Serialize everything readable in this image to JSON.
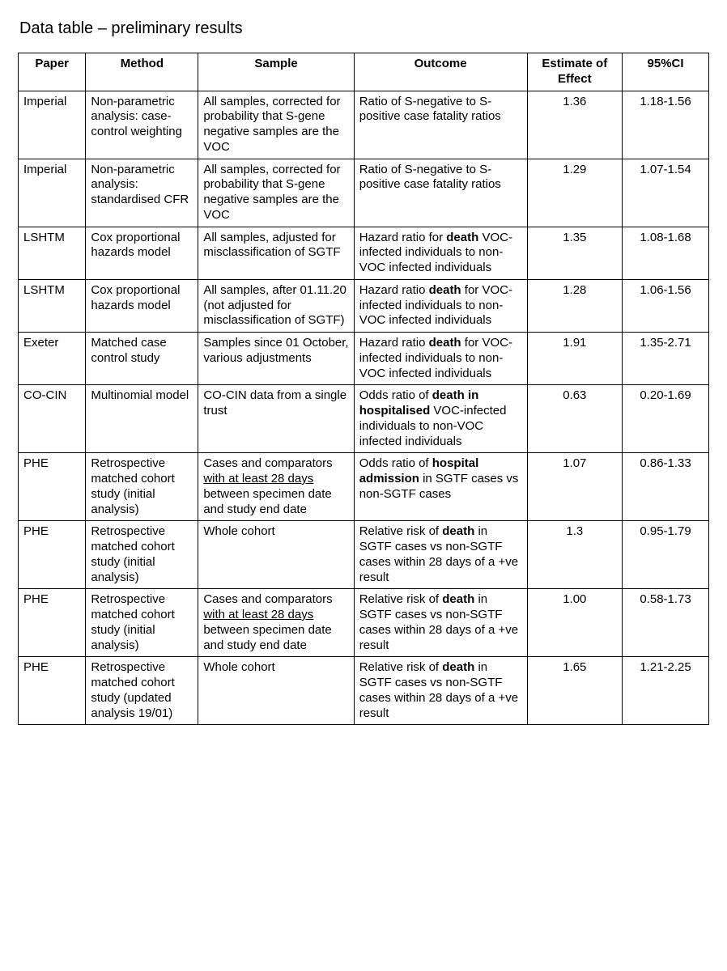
{
  "title": "Data table – preliminary results",
  "table": {
    "columns": [
      {
        "label": "Paper",
        "class": "c-paper"
      },
      {
        "label": "Method",
        "class": "c-method"
      },
      {
        "label": "Sample",
        "class": "c-sample"
      },
      {
        "label": "Outcome",
        "class": "c-outcome"
      },
      {
        "label": "Estimate of Effect",
        "class": "c-est"
      },
      {
        "label": "95%CI",
        "class": "c-ci"
      }
    ],
    "rows": [
      {
        "paper": "Imperial",
        "method": "Non-parametric analysis: case-control weighting",
        "sample": [
          {
            "t": "All samples, corrected for probability that S-gene negative samples are the VOC"
          }
        ],
        "outcome": [
          {
            "t": "Ratio of S-negative to S-positive case fatality ratios"
          }
        ],
        "estimate": "1.36",
        "ci": "1.18-1.56"
      },
      {
        "paper": "Imperial",
        "method": "Non-parametric analysis: standardised CFR",
        "sample": [
          {
            "t": "All samples, corrected for probability that S-gene negative samples are the VOC"
          }
        ],
        "outcome": [
          {
            "t": "Ratio of S-negative to S-positive case fatality ratios"
          }
        ],
        "estimate": "1.29",
        "ci": "1.07-1.54"
      },
      {
        "paper": "LSHTM",
        "method": "Cox proportional hazards model",
        "sample": [
          {
            "t": "All samples, adjusted for misclassification of SGTF"
          }
        ],
        "outcome": [
          {
            "t": "Hazard ratio for "
          },
          {
            "t": "death",
            "b": true
          },
          {
            "t": " VOC-infected individuals to non-VOC infected individuals"
          }
        ],
        "estimate": "1.35",
        "ci": "1.08-1.68"
      },
      {
        "paper": "LSHTM",
        "method": "Cox proportional hazards model",
        "sample": [
          {
            "t": "All samples, after 01.11.20 (not adjusted for misclassification of SGTF)"
          }
        ],
        "outcome": [
          {
            "t": "Hazard ratio "
          },
          {
            "t": "death",
            "b": true
          },
          {
            "t": " for VOC-infected individuals to non-VOC infected individuals"
          }
        ],
        "estimate": "1.28",
        "ci": "1.06-1.56"
      },
      {
        "paper": "Exeter",
        "method": "Matched case control study",
        "sample": [
          {
            "t": "Samples since 01 October, various adjustments"
          }
        ],
        "outcome": [
          {
            "t": "Hazard ratio "
          },
          {
            "t": "death",
            "b": true
          },
          {
            "t": " for VOC-infected individuals to non-VOC infected individuals"
          }
        ],
        "estimate": "1.91",
        "ci": "1.35-2.71"
      },
      {
        "paper": "CO-CIN",
        "method": "Multinomial model",
        "sample": [
          {
            "t": "CO-CIN data from a single trust"
          }
        ],
        "outcome": [
          {
            "t": "Odds ratio of "
          },
          {
            "t": "death in hospitalised",
            "b": true
          },
          {
            "t": " VOC-infected individuals to non-VOC infected individuals"
          }
        ],
        "estimate": "0.63",
        "ci": "0.20-1.69"
      },
      {
        "paper": "PHE",
        "method": "Retrospective matched cohort study (initial analysis)",
        "sample": [
          {
            "t": "Cases and comparators "
          },
          {
            "t": "with at least 28 days",
            "u": true
          },
          {
            "t": " between specimen date and study end date"
          }
        ],
        "outcome": [
          {
            "t": "Odds ratio of "
          },
          {
            "t": "hospital admission",
            "b": true
          },
          {
            "t": " in SGTF cases vs non-SGTF cases"
          }
        ],
        "estimate": "1.07",
        "ci": "0.86-1.33"
      },
      {
        "paper": "PHE",
        "method": "Retrospective matched cohort study (initial analysis)",
        "sample": [
          {
            "t": "Whole cohort"
          }
        ],
        "outcome": [
          {
            "t": "Relative risk of "
          },
          {
            "t": "death",
            "b": true
          },
          {
            "t": " in SGTF cases vs non-SGTF cases within 28 days of a +ve result"
          }
        ],
        "estimate": "1.3",
        "ci": "0.95-1.79"
      },
      {
        "paper": "PHE",
        "method": "Retrospective matched cohort study (initial analysis)",
        "sample": [
          {
            "t": "Cases and comparators "
          },
          {
            "t": "with at least 28 days",
            "u": true
          },
          {
            "t": " between specimen date and study end date"
          }
        ],
        "outcome": [
          {
            "t": "Relative risk of "
          },
          {
            "t": "death",
            "b": true
          },
          {
            "t": " in SGTF cases vs non-SGTF cases within 28 days of a +ve result"
          }
        ],
        "estimate": "1.00",
        "ci": "0.58-1.73"
      },
      {
        "paper": "PHE",
        "method": "Retrospective matched cohort study (updated analysis 19/01)",
        "sample": [
          {
            "t": "Whole cohort"
          }
        ],
        "outcome": [
          {
            "t": "Relative risk of "
          },
          {
            "t": "death",
            "b": true
          },
          {
            "t": " in SGTF cases vs non-SGTF cases within 28 days of a +ve result"
          }
        ],
        "estimate": "1.65",
        "ci": "1.21-2.25"
      }
    ]
  }
}
